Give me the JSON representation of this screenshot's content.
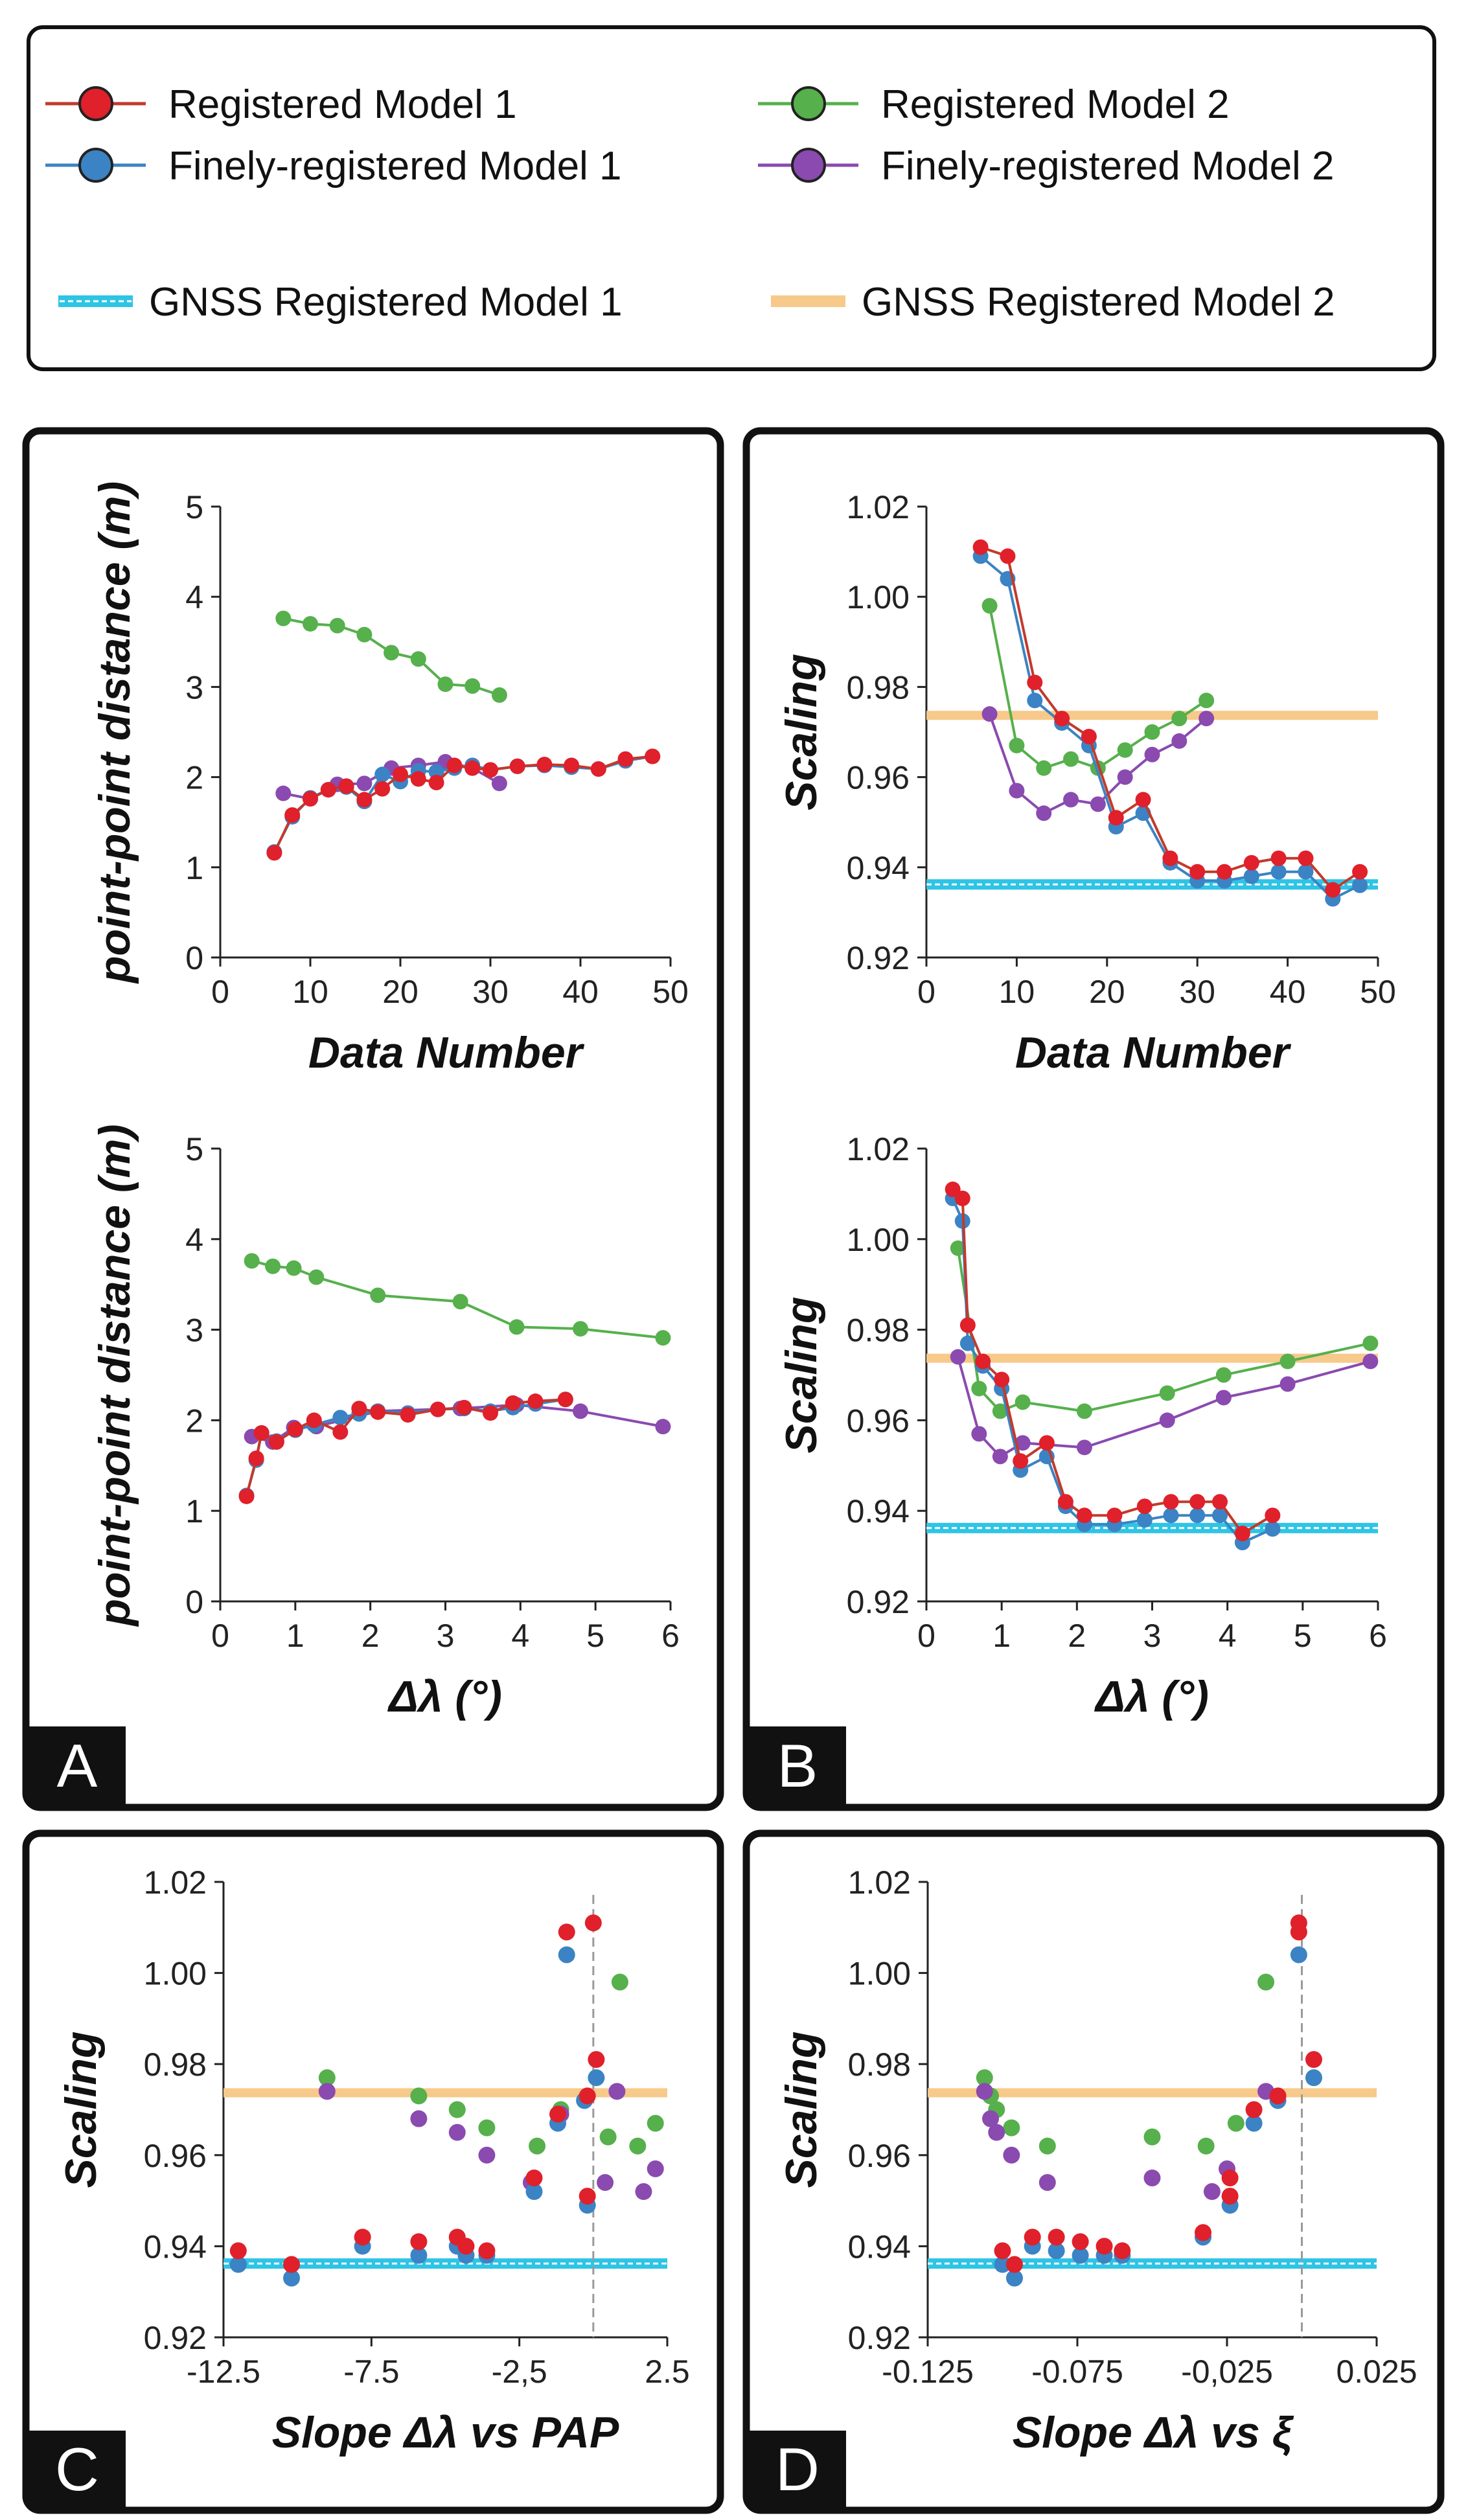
{
  "colors": {
    "red": "#e0202a",
    "red_line": "#c23a2c",
    "blue": "#3b83c4",
    "green": "#56b04c",
    "purple": "#8a4ab0",
    "gnss1": "#2ec4e6",
    "gnss2": "#f7c98a",
    "frame": "#111111"
  },
  "legend": {
    "items": [
      {
        "label": "Registered Model 1",
        "series": "red"
      },
      {
        "label": "Registered Model 2",
        "series": "green"
      },
      {
        "label": "Finely-registered Model 1",
        "series": "blue"
      },
      {
        "label": "Finely-registered Model 2",
        "series": "purple"
      },
      {
        "label": "GNSS Registered Model 1",
        "series": "gnss1"
      },
      {
        "label": "GNSS Registered Model 2",
        "series": "gnss2"
      }
    ]
  },
  "panels": {
    "A": {
      "letter": "A"
    },
    "B": {
      "letter": "B"
    },
    "C": {
      "letter": "C"
    },
    "D": {
      "letter": "D"
    }
  },
  "chart_data": [
    {
      "id": "A1",
      "type": "line",
      "xlabel": "Data Number",
      "ylabel": "point-point distance (m)",
      "xlim": [
        0,
        50
      ],
      "ylim": [
        0,
        5
      ],
      "xticks": [
        "0",
        "10",
        "20",
        "30",
        "40",
        "50"
      ],
      "yticks": [
        "0",
        "1",
        "2",
        "3",
        "4",
        "5"
      ],
      "series": [
        {
          "name": "Registered Model 2",
          "color": "green",
          "x": [
            7,
            10,
            13,
            16,
            19,
            22,
            25,
            28,
            31
          ],
          "y": [
            3.76,
            3.7,
            3.68,
            3.58,
            3.38,
            3.31,
            3.03,
            3.01,
            2.91
          ]
        },
        {
          "name": "Finely-registered Model 2",
          "color": "purple",
          "x": [
            7,
            10,
            13,
            16,
            19,
            22,
            25,
            28,
            31
          ],
          "y": [
            1.82,
            1.76,
            1.92,
            1.93,
            2.1,
            2.13,
            2.17,
            2.1,
            1.93
          ]
        },
        {
          "name": "Finely-registered Model 1",
          "color": "blue",
          "x": [
            6,
            8,
            10,
            12,
            14,
            16,
            18,
            20,
            22,
            24,
            26,
            28,
            30,
            33,
            36,
            39,
            42,
            45,
            48
          ],
          "y": [
            1.17,
            1.56,
            1.77,
            1.86,
            1.89,
            1.73,
            2.03,
            1.95,
            2.07,
            2.06,
            2.1,
            2.13,
            2.08,
            2.12,
            2.13,
            2.11,
            2.09,
            2.18,
            2.23
          ]
        },
        {
          "name": "Registered Model 1",
          "color": "red",
          "x": [
            6,
            8,
            10,
            12,
            14,
            16,
            18,
            20,
            22,
            24,
            26,
            28,
            30,
            33,
            36,
            39,
            42,
            45,
            48
          ],
          "y": [
            1.16,
            1.58,
            1.76,
            1.86,
            1.9,
            1.75,
            1.87,
            2.03,
            1.98,
            1.94,
            2.13,
            2.1,
            2.08,
            2.12,
            2.14,
            2.13,
            2.09,
            2.2,
            2.23
          ]
        }
      ]
    },
    {
      "id": "A2",
      "type": "line",
      "xlabel": "Δλ (°)",
      "ylabel": "point-point distance (m)",
      "xlim": [
        0,
        6
      ],
      "ylim": [
        0,
        5
      ],
      "xticks": [
        "0",
        "1",
        "2",
        "3",
        "4",
        "5",
        "6"
      ],
      "yticks": [
        "0",
        "1",
        "2",
        "3",
        "4",
        "5"
      ],
      "series": [
        {
          "name": "Registered Model 2",
          "color": "green",
          "x": [
            0.42,
            0.7,
            0.98,
            1.28,
            2.1,
            3.2,
            3.95,
            4.8,
            5.9
          ],
          "y": [
            3.76,
            3.7,
            3.68,
            3.58,
            3.38,
            3.31,
            3.03,
            3.01,
            2.91
          ]
        },
        {
          "name": "Finely-registered Model 2",
          "color": "purple",
          "x": [
            0.42,
            0.7,
            0.98,
            1.28,
            2.1,
            3.2,
            3.95,
            4.8,
            5.9
          ],
          "y": [
            1.82,
            1.76,
            1.92,
            1.93,
            2.1,
            2.13,
            2.17,
            2.1,
            1.93
          ]
        },
        {
          "name": "Finely-registered Model 1",
          "color": "blue",
          "x": [
            0.35,
            0.48,
            0.55,
            0.75,
            1.0,
            1.25,
            1.6,
            1.85,
            2.1,
            2.5,
            2.9,
            3.25,
            3.6,
            3.9,
            4.2,
            4.6
          ],
          "y": [
            1.17,
            1.56,
            1.86,
            1.77,
            1.89,
            1.95,
            2.03,
            2.07,
            2.1,
            2.08,
            2.12,
            2.13,
            2.1,
            2.14,
            2.18,
            2.23
          ]
        },
        {
          "name": "Registered Model 1",
          "color": "red",
          "x": [
            0.35,
            0.48,
            0.55,
            0.75,
            1.0,
            1.25,
            1.6,
            1.85,
            2.1,
            2.5,
            2.9,
            3.25,
            3.6,
            3.9,
            4.2,
            4.6
          ],
          "y": [
            1.16,
            1.58,
            1.86,
            1.76,
            1.9,
            2.0,
            1.87,
            2.13,
            2.09,
            2.06,
            2.12,
            2.14,
            2.08,
            2.19,
            2.21,
            2.23
          ]
        }
      ]
    },
    {
      "id": "B1",
      "type": "line",
      "xlabel": "Data Number",
      "ylabel": "Scaling",
      "xlim": [
        0,
        50
      ],
      "ylim": [
        0.92,
        1.02
      ],
      "xticks": [
        "0",
        "10",
        "20",
        "30",
        "40",
        "50"
      ],
      "yticks": [
        "0.92",
        "0.94",
        "0.96",
        "0.98",
        "1.00",
        "1.02"
      ],
      "hlines": [
        {
          "y": 0.9737,
          "color": "gnss2"
        },
        {
          "y": 0.9362,
          "color": "gnss1"
        }
      ],
      "series": [
        {
          "name": "Registered Model 2",
          "color": "green",
          "x": [
            7,
            10,
            13,
            16,
            19,
            22,
            25,
            28,
            31
          ],
          "y": [
            0.998,
            0.967,
            0.962,
            0.964,
            0.962,
            0.966,
            0.97,
            0.973,
            0.977
          ]
        },
        {
          "name": "Finely-registered Model 2",
          "color": "purple",
          "x": [
            7,
            10,
            13,
            16,
            19,
            22,
            25,
            28,
            31
          ],
          "y": [
            0.974,
            0.957,
            0.952,
            0.955,
            0.954,
            0.96,
            0.965,
            0.968,
            0.973
          ]
        },
        {
          "name": "Finely-registered Model 1",
          "color": "blue",
          "x": [
            6,
            9,
            12,
            15,
            18,
            21,
            24,
            27,
            30,
            33,
            36,
            39,
            42,
            45,
            48
          ],
          "y": [
            1.009,
            1.004,
            0.977,
            0.972,
            0.967,
            0.949,
            0.952,
            0.941,
            0.937,
            0.937,
            0.938,
            0.939,
            0.939,
            0.933,
            0.936
          ]
        },
        {
          "name": "Registered Model 1",
          "color": "red",
          "x": [
            6,
            9,
            12,
            15,
            18,
            21,
            24,
            27,
            30,
            33,
            36,
            39,
            42,
            45,
            48
          ],
          "y": [
            1.011,
            1.009,
            0.981,
            0.973,
            0.969,
            0.951,
            0.955,
            0.942,
            0.939,
            0.939,
            0.941,
            0.942,
            0.942,
            0.935,
            0.939
          ]
        }
      ]
    },
    {
      "id": "B2",
      "type": "line",
      "xlabel": "Δλ (°)",
      "ylabel": "Scaling",
      "xlim": [
        0,
        6
      ],
      "ylim": [
        0.92,
        1.02
      ],
      "xticks": [
        "0",
        "1",
        "2",
        "3",
        "4",
        "5",
        "6"
      ],
      "yticks": [
        "0.92",
        "0.94",
        "0.96",
        "0.98",
        "1.00",
        "1.02"
      ],
      "hlines": [
        {
          "y": 0.9737,
          "color": "gnss2"
        },
        {
          "y": 0.9362,
          "color": "gnss1"
        }
      ],
      "series": [
        {
          "name": "Registered Model 2",
          "color": "green",
          "x": [
            0.42,
            0.7,
            0.98,
            1.28,
            2.1,
            3.2,
            3.95,
            4.8,
            5.9
          ],
          "y": [
            0.998,
            0.967,
            0.962,
            0.964,
            0.962,
            0.966,
            0.97,
            0.973,
            0.977
          ]
        },
        {
          "name": "Finely-registered Model 2",
          "color": "purple",
          "x": [
            0.42,
            0.7,
            0.98,
            1.28,
            2.1,
            3.2,
            3.95,
            4.8,
            5.9
          ],
          "y": [
            0.974,
            0.957,
            0.952,
            0.955,
            0.954,
            0.96,
            0.965,
            0.968,
            0.973
          ]
        },
        {
          "name": "Finely-registered Model 1",
          "color": "blue",
          "x": [
            0.35,
            0.48,
            0.55,
            0.75,
            1.0,
            1.25,
            1.6,
            1.85,
            2.1,
            2.5,
            2.9,
            3.25,
            3.6,
            3.9,
            4.2,
            4.6
          ],
          "y": [
            1.009,
            1.004,
            0.977,
            0.972,
            0.967,
            0.949,
            0.952,
            0.941,
            0.937,
            0.937,
            0.938,
            0.939,
            0.939,
            0.939,
            0.933,
            0.936
          ]
        },
        {
          "name": "Registered Model 1",
          "color": "red",
          "x": [
            0.35,
            0.48,
            0.55,
            0.75,
            1.0,
            1.25,
            1.6,
            1.85,
            2.1,
            2.5,
            2.9,
            3.25,
            3.6,
            3.9,
            4.2,
            4.6
          ],
          "y": [
            1.011,
            1.009,
            0.981,
            0.973,
            0.969,
            0.951,
            0.955,
            0.942,
            0.939,
            0.939,
            0.941,
            0.942,
            0.942,
            0.942,
            0.935,
            0.939
          ]
        }
      ]
    },
    {
      "id": "C",
      "type": "scatter",
      "xlabel": "Slope Δλ vs PAP",
      "ylabel": "Scaling",
      "xlim": [
        -12.5,
        2.5
      ],
      "ylim": [
        0.92,
        1.02
      ],
      "xticks": [
        "-12.5",
        "-7.5",
        "-2,5",
        "2.5"
      ],
      "xtick_values": [
        -12.5,
        -7.5,
        -2.5,
        2.5
      ],
      "yticks": [
        "0.92",
        "0.94",
        "0.96",
        "0.98",
        "1.00",
        "1.02"
      ],
      "hlines": [
        {
          "y": 0.9737,
          "color": "gnss2"
        },
        {
          "y": 0.9362,
          "color": "gnss1"
        }
      ],
      "vline": 0,
      "series": [
        {
          "name": "Registered Model 2",
          "color": "green",
          "x": [
            -9,
            -5.9,
            -4.6,
            -3.6,
            -1.9,
            -1.1,
            0.9,
            0.5,
            1.5,
            2.1
          ],
          "y": [
            0.977,
            0.973,
            0.97,
            0.966,
            0.962,
            0.97,
            0.998,
            0.964,
            0.962,
            0.967
          ]
        },
        {
          "name": "Finely-registered Model 2",
          "color": "purple",
          "x": [
            -9,
            -5.9,
            -4.6,
            -3.6,
            -2.1,
            -1.1,
            0.4,
            0.8,
            1.7,
            2.1
          ],
          "y": [
            0.974,
            0.968,
            0.965,
            0.96,
            0.954,
            0.969,
            0.954,
            0.974,
            0.952,
            0.957
          ]
        },
        {
          "name": "Finely-registered Model 1",
          "color": "blue",
          "x": [
            -12,
            -10.2,
            -7.8,
            -5.9,
            -4.6,
            -4.3,
            -3.6,
            -2.0,
            -1.2,
            -0.9,
            -0.2,
            -0.3,
            0.1
          ],
          "y": [
            0.936,
            0.933,
            0.94,
            0.938,
            0.94,
            0.938,
            0.938,
            0.952,
            0.967,
            1.004,
            0.949,
            0.972,
            0.977
          ]
        },
        {
          "name": "Registered Model 1",
          "color": "red",
          "x": [
            -12,
            -10.2,
            -7.8,
            -5.9,
            -4.6,
            -4.3,
            -3.6,
            -2.0,
            -1.2,
            -0.9,
            -0.2,
            -0.2,
            0.1,
            0
          ],
          "y": [
            0.939,
            0.936,
            0.942,
            0.941,
            0.942,
            0.94,
            0.939,
            0.955,
            0.969,
            1.009,
            0.951,
            0.973,
            0.981,
            1.011
          ]
        }
      ]
    },
    {
      "id": "D",
      "type": "scatter",
      "xlabel": "Slope Δλ vs ξ",
      "ylabel": "Scaling",
      "xlim": [
        -0.125,
        0.025
      ],
      "ylim": [
        0.92,
        1.02
      ],
      "xticks": [
        "-0.125",
        "-0.075",
        "-0,025",
        "0.025"
      ],
      "xtick_values": [
        -0.125,
        -0.075,
        -0.025,
        0.025
      ],
      "yticks": [
        "0.92",
        "0.94",
        "0.96",
        "0.98",
        "1.00",
        "1.02"
      ],
      "hlines": [
        {
          "y": 0.9737,
          "color": "gnss2"
        },
        {
          "y": 0.9362,
          "color": "gnss1"
        }
      ],
      "vline": 0,
      "series": [
        {
          "name": "Registered Model 2",
          "color": "green",
          "x": [
            -0.106,
            -0.104,
            -0.102,
            -0.097,
            -0.085,
            -0.05,
            -0.032,
            -0.022,
            -0.012
          ],
          "y": [
            0.977,
            0.973,
            0.97,
            0.966,
            0.962,
            0.964,
            0.962,
            0.967,
            0.998
          ]
        },
        {
          "name": "Finely-registered Model 2",
          "color": "purple",
          "x": [
            -0.106,
            -0.104,
            -0.102,
            -0.097,
            -0.085,
            -0.05,
            -0.03,
            -0.025,
            -0.012
          ],
          "y": [
            0.974,
            0.968,
            0.965,
            0.96,
            0.954,
            0.955,
            0.952,
            0.957,
            0.974
          ]
        },
        {
          "name": "Finely-registered Model 1",
          "color": "blue",
          "x": [
            -0.1,
            -0.096,
            -0.09,
            -0.082,
            -0.074,
            -0.066,
            -0.06,
            -0.033,
            -0.024,
            -0.016,
            -0.008,
            -0.001,
            0.004
          ],
          "y": [
            0.936,
            0.933,
            0.94,
            0.939,
            0.938,
            0.938,
            0.938,
            0.942,
            0.949,
            0.967,
            0.972,
            1.004,
            0.977
          ]
        },
        {
          "name": "Registered Model 1",
          "color": "red",
          "x": [
            -0.1,
            -0.096,
            -0.09,
            -0.082,
            -0.074,
            -0.066,
            -0.06,
            -0.033,
            -0.024,
            -0.016,
            -0.008,
            -0.001,
            0.004,
            -0.024,
            -0.001
          ],
          "y": [
            0.939,
            0.936,
            0.942,
            0.942,
            0.941,
            0.94,
            0.939,
            0.943,
            0.951,
            0.97,
            0.973,
            1.009,
            0.981,
            0.955,
            1.011
          ]
        }
      ]
    }
  ]
}
